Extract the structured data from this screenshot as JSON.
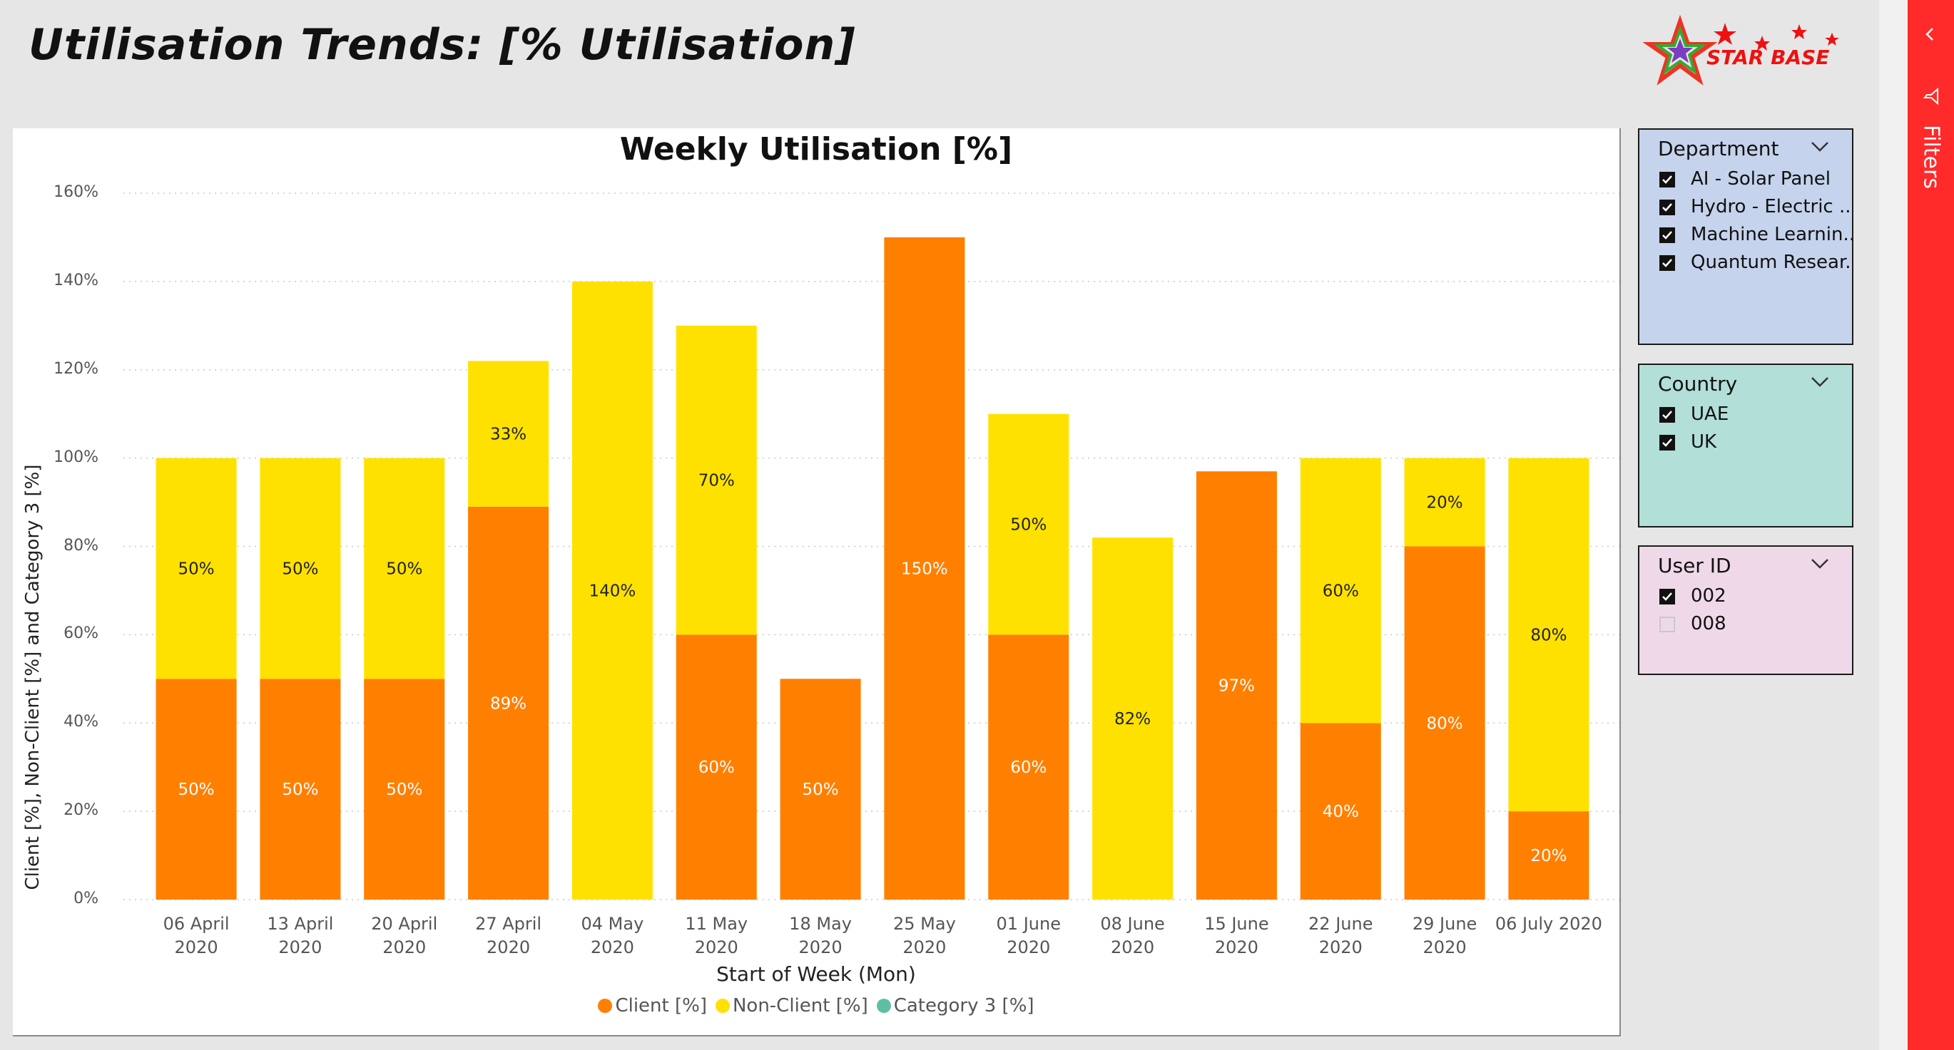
{
  "page": {
    "title": "Utilisation Trends: [% Utilisation]"
  },
  "logo": {
    "text": "STAR BASE"
  },
  "colors": {
    "client": "#ff7f00",
    "non_client": "#ffe100",
    "category3": "#5fbfa3",
    "filters_pane": "#ff2a2a"
  },
  "chart_data": {
    "type": "bar",
    "stacked": true,
    "title": "Weekly Utilisation [%]",
    "xlabel": "Start of Week (Mon)",
    "ylabel": "Client [%], Non-Client [%] and Category 3 [%]",
    "ylim": [
      0,
      160
    ],
    "yticks": [
      "0%",
      "20%",
      "40%",
      "60%",
      "80%",
      "100%",
      "120%",
      "140%",
      "160%"
    ],
    "grid": true,
    "categories": [
      [
        "06 April",
        "2020"
      ],
      [
        "13 April",
        "2020"
      ],
      [
        "20 April",
        "2020"
      ],
      [
        "27 April",
        "2020"
      ],
      [
        "04 May",
        "2020"
      ],
      [
        "11 May",
        "2020"
      ],
      [
        "18 May",
        "2020"
      ],
      [
        "25 May",
        "2020"
      ],
      [
        "01 June",
        "2020"
      ],
      [
        "08 June",
        "2020"
      ],
      [
        "15 June",
        "2020"
      ],
      [
        "22 June",
        "2020"
      ],
      [
        "29 June",
        "2020"
      ],
      [
        "06 July 2020",
        ""
      ]
    ],
    "series": [
      {
        "name": "Client [%]",
        "color": "#ff7f00",
        "label_color": "#ffffff",
        "values": [
          50,
          50,
          50,
          89,
          0,
          60,
          50,
          150,
          60,
          0,
          97,
          40,
          80,
          20
        ],
        "labels": [
          "50%",
          "50%",
          "50%",
          "89%",
          "",
          "60%",
          "50%",
          "150%",
          "60%",
          "",
          "97%",
          "40%",
          "80%",
          "20%"
        ]
      },
      {
        "name": "Non-Client [%]",
        "color": "#ffe100",
        "label_color": "#222222",
        "values": [
          50,
          50,
          50,
          33,
          140,
          70,
          0,
          0,
          50,
          82,
          0,
          60,
          20,
          80
        ],
        "labels": [
          "50%",
          "50%",
          "50%",
          "33%",
          "140%",
          "70%",
          "",
          "",
          "50%",
          "82%",
          "",
          "60%",
          "20%",
          "80%"
        ]
      },
      {
        "name": "Category 3 [%]",
        "color": "#5fbfa3",
        "label_color": "#222222",
        "values": [
          0,
          0,
          0,
          0,
          0,
          0,
          0,
          0,
          0,
          0,
          0,
          0,
          0,
          0
        ],
        "labels": [
          "",
          "",
          "",
          "",
          "",
          "",
          "",
          "",
          "",
          "",
          "",
          "",
          "",
          ""
        ]
      }
    ],
    "legend": [
      "Client [%]",
      "Non-Client [%]",
      "Category 3 [%]"
    ],
    "legend_position": "bottom"
  },
  "slicers": {
    "department": {
      "title": "Department",
      "bg": "#c5d3ec",
      "items": [
        {
          "label": "AI - Solar Panel",
          "checked": true
        },
        {
          "label": "Hydro - Electric ...",
          "checked": true
        },
        {
          "label": "Machine Learnin...",
          "checked": true
        },
        {
          "label": "Quantum Resear...",
          "checked": true
        }
      ]
    },
    "country": {
      "title": "Country",
      "bg": "#b2dfd8",
      "items": [
        {
          "label": "UAE",
          "checked": true
        },
        {
          "label": "UK",
          "checked": true
        }
      ]
    },
    "user_id": {
      "title": "User ID",
      "bg": "#efd9e8",
      "items": [
        {
          "label": "002",
          "checked": true
        },
        {
          "label": "008",
          "checked": false
        }
      ]
    }
  },
  "filters_pane": {
    "label": "Filters"
  }
}
